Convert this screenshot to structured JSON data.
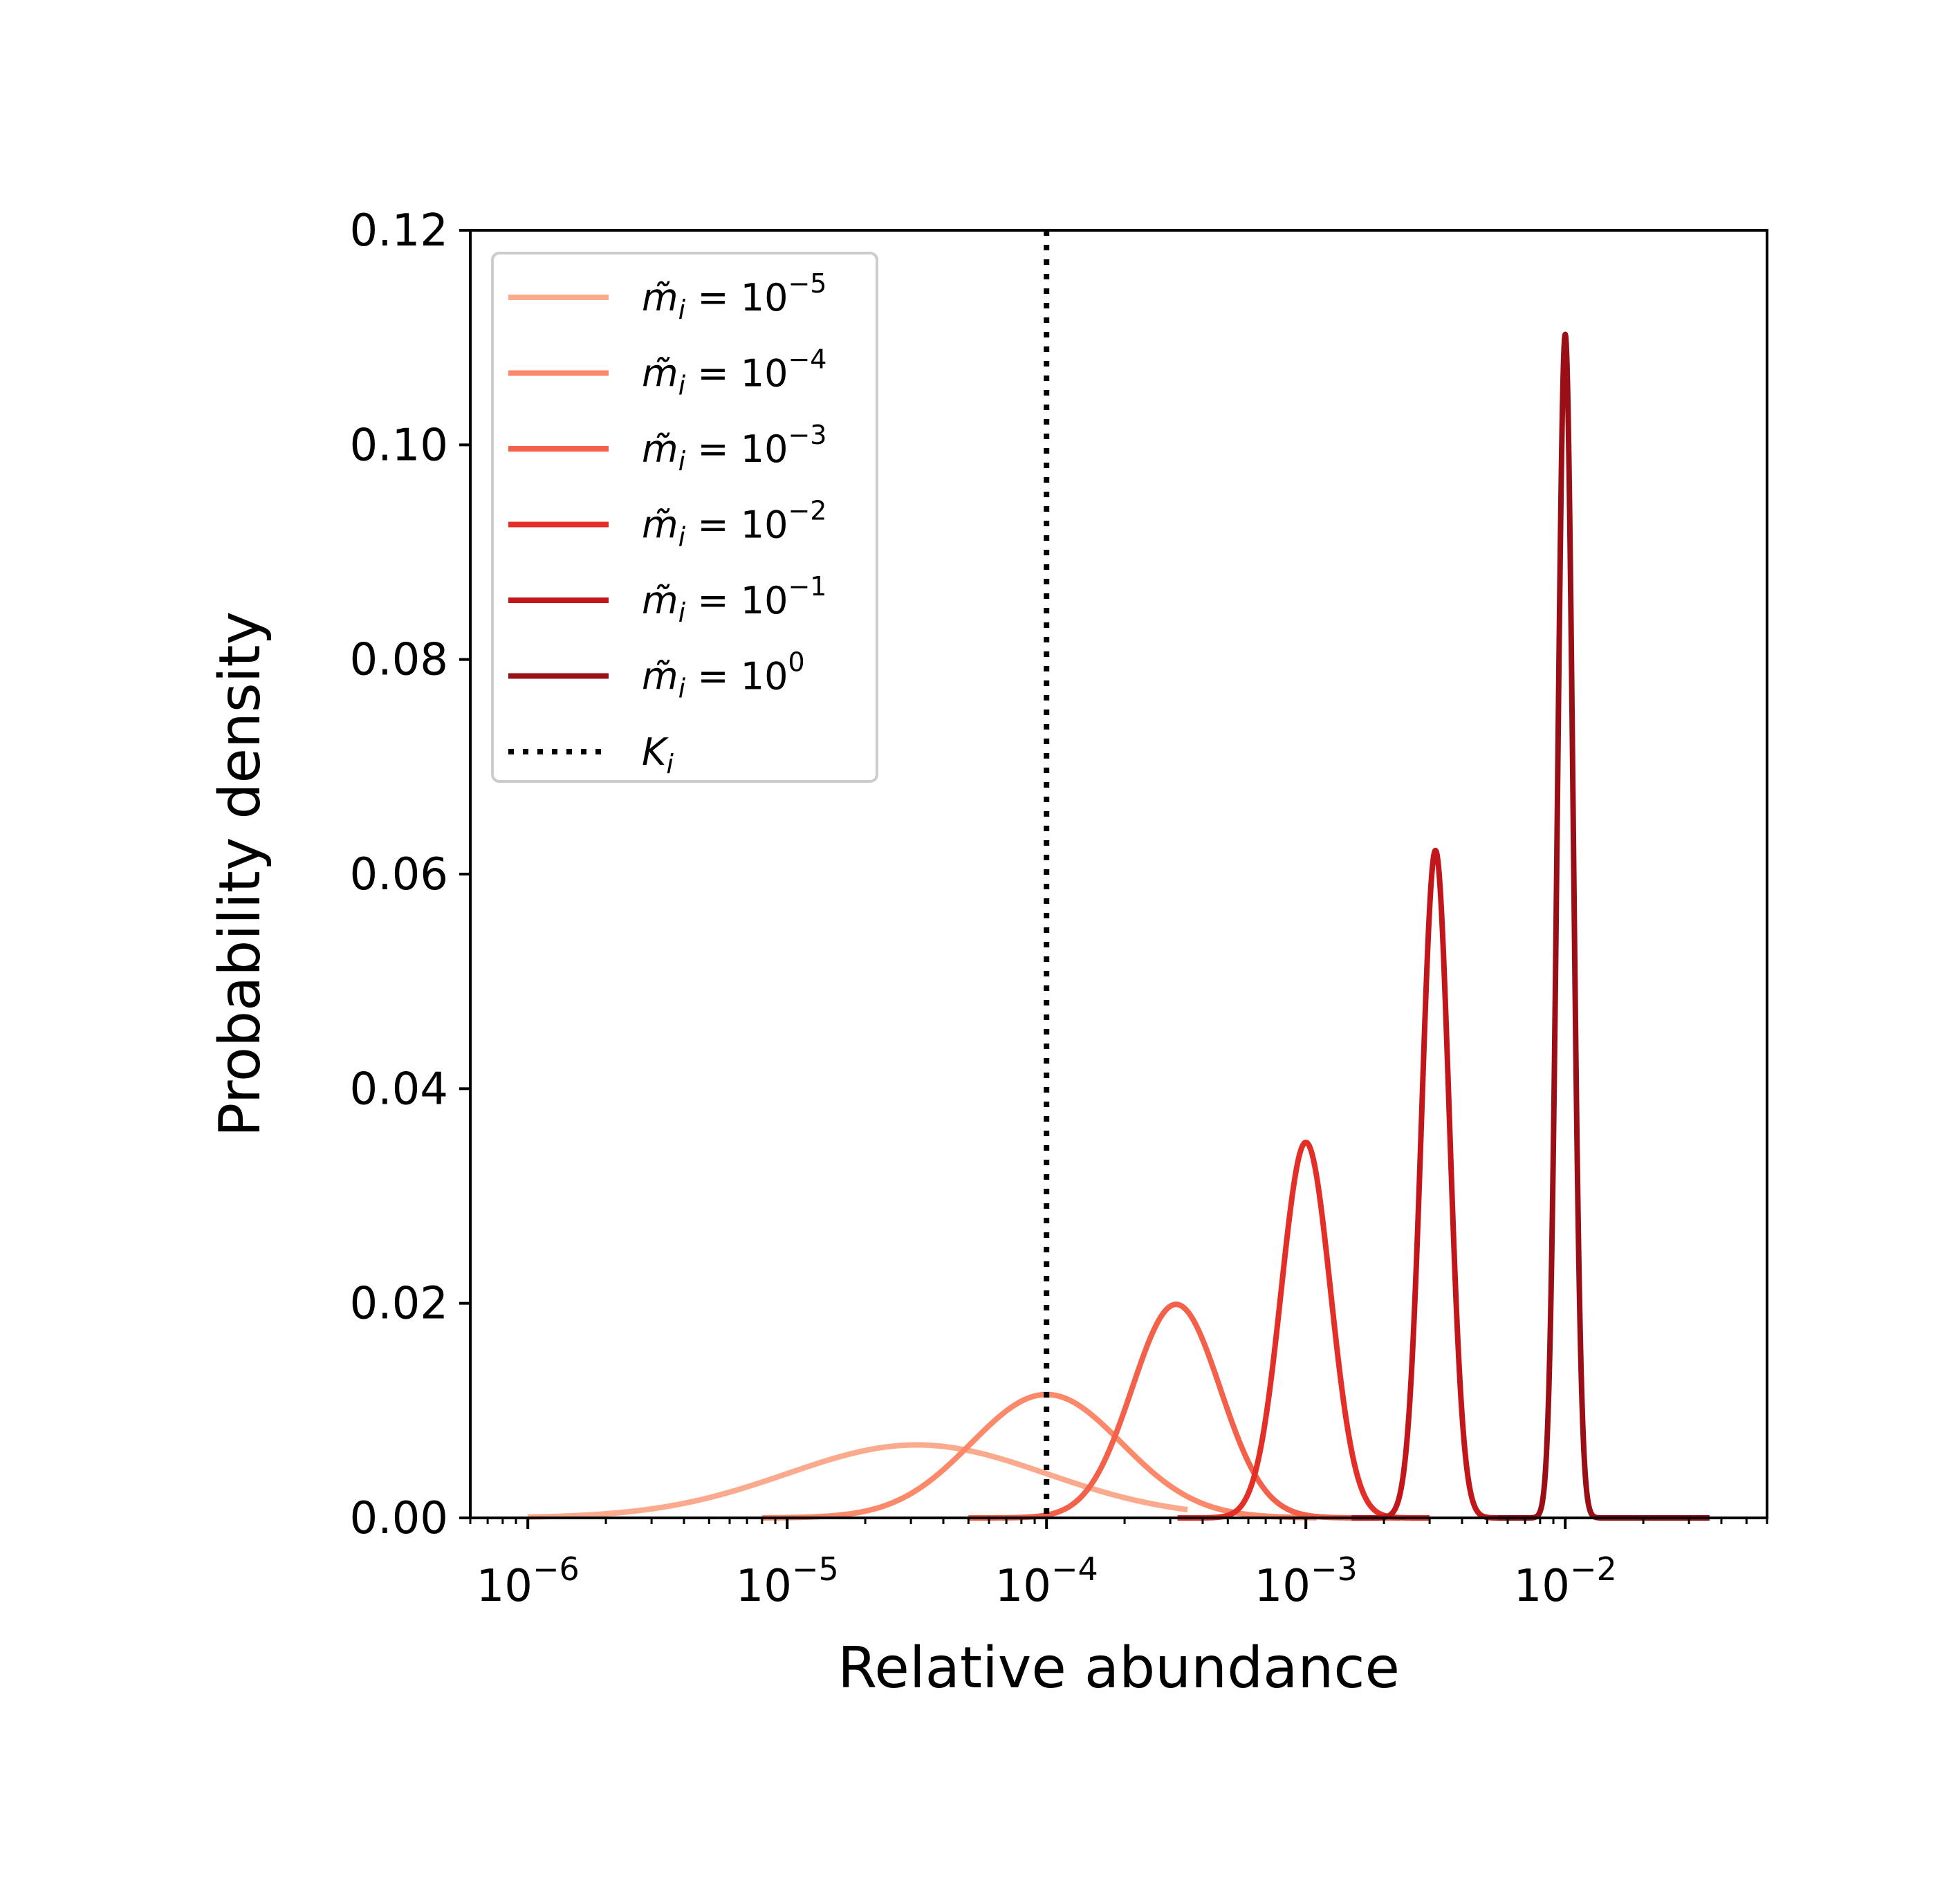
{
  "chart_data": {
    "type": "line",
    "xscale": "log",
    "xlabel": "Relative abundance",
    "ylabel": "Probability density",
    "xlim": [
      6e-07,
      0.06
    ],
    "ylim": [
      0,
      0.12
    ],
    "grid": false,
    "legend_position": "upper-left",
    "yticks": [
      {
        "value": 0.0,
        "label": "0.00"
      },
      {
        "value": 0.02,
        "label": "0.02"
      },
      {
        "value": 0.04,
        "label": "0.04"
      },
      {
        "value": 0.06,
        "label": "0.06"
      },
      {
        "value": 0.08,
        "label": "0.08"
      },
      {
        "value": 0.1,
        "label": "0.10"
      },
      {
        "value": 0.12,
        "label": "0.12"
      }
    ],
    "xticks": [
      {
        "value": 1e-06,
        "base": "10",
        "exp": "−6"
      },
      {
        "value": 1e-05,
        "base": "10",
        "exp": "−5"
      },
      {
        "value": 0.0001,
        "base": "10",
        "exp": "−4"
      },
      {
        "value": 0.001,
        "base": "10",
        "exp": "−3"
      },
      {
        "value": 0.01,
        "base": "10",
        "exp": "−2"
      }
    ],
    "series": [
      {
        "name": "m̃i = 10^−5",
        "label_var": "m̃",
        "label_sub": "i",
        "label_eq": " = 10",
        "label_exp": "−5",
        "color": "#fcaa8d",
        "peak_x": 3.16e-05,
        "peak_y": 0.0068,
        "log10_sigma": 0.5,
        "x_range": [
          1e-06,
          0.00035
        ]
      },
      {
        "name": "m̃i = 10^−4",
        "label_var": "m̃",
        "label_sub": "i",
        "label_eq": " = 10",
        "label_exp": "−4",
        "color": "#fc8a6a",
        "peak_x": 0.0001,
        "peak_y": 0.0115,
        "log10_sigma": 0.29,
        "x_range": [
          8e-06,
          0.0011
        ]
      },
      {
        "name": "m̃i = 10^−3",
        "label_var": "m̃",
        "label_sub": "i",
        "label_eq": " = 10",
        "label_exp": "−3",
        "color": "#f4614a",
        "peak_x": 0.000316,
        "peak_y": 0.0199,
        "log10_sigma": 0.17,
        "x_range": [
          5e-05,
          0.0023
        ]
      },
      {
        "name": "m̃i = 10^−2",
        "label_var": "m̃",
        "label_sub": "i",
        "label_eq": " = 10",
        "label_exp": "−2",
        "color": "#e32f27",
        "peak_x": 0.001,
        "peak_y": 0.035,
        "log10_sigma": 0.095,
        "x_range": [
          0.00032,
          0.003
        ]
      },
      {
        "name": "m̃i = 10^−1",
        "label_var": "m̃",
        "label_sub": "i",
        "label_eq": " = 10",
        "label_exp": "−1",
        "color": "#c2161b",
        "peak_x": 0.00316,
        "peak_y": 0.0622,
        "log10_sigma": 0.053,
        "x_range": [
          0.0015,
          0.0065
        ]
      },
      {
        "name": "m̃i = 10^0",
        "label_var": "m̃",
        "label_sub": "i",
        "label_eq": " = 10",
        "label_exp": "0",
        "color": "#9a0e15",
        "peak_x": 0.01,
        "peak_y": 0.1103,
        "log10_sigma": 0.03,
        "x_range": [
          0.0055,
          0.036
        ]
      }
    ],
    "reference_line": {
      "name": "Ki",
      "label_var": "K",
      "label_sub": "i",
      "x": 0.0001,
      "style": "dotted",
      "color": "#000000"
    }
  }
}
